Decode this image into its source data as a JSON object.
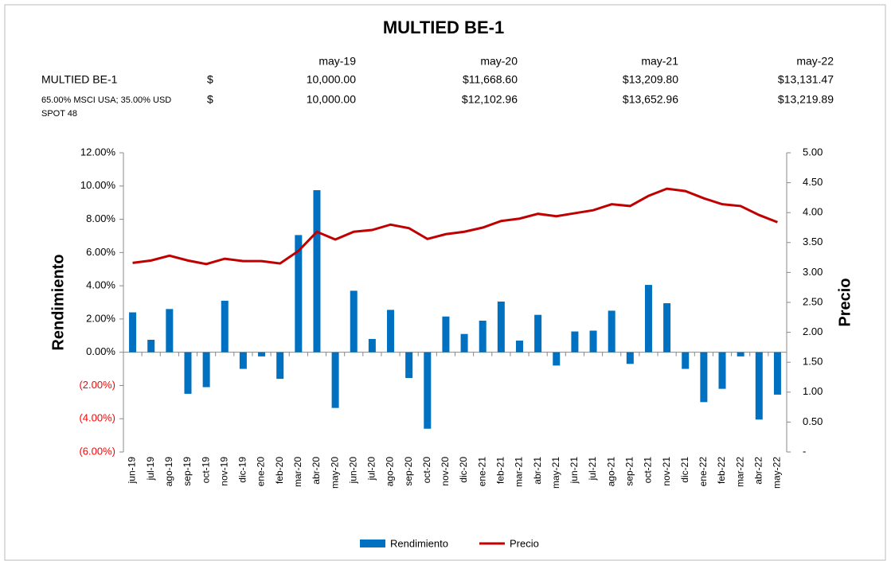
{
  "chart_data": {
    "type": "bar_line",
    "title": "MULTIED BE-1",
    "y_label": "Rendimiento",
    "y2_label": "Precio",
    "categories": [
      "jun-19",
      "jul-19",
      "ago-19",
      "sep-19",
      "oct-19",
      "nov-19",
      "dic-19",
      "ene-20",
      "feb-20",
      "mar-20",
      "abr-20",
      "may-20",
      "jun-20",
      "jul-20",
      "ago-20",
      "sep-20",
      "oct-20",
      "nov-20",
      "dic-20",
      "ene-21",
      "feb-21",
      "mar-21",
      "abr-21",
      "may-21",
      "jun-21",
      "jul-21",
      "ago-21",
      "sep-21",
      "oct-21",
      "nov-21",
      "dic-21",
      "ene-22",
      "feb-22",
      "mar-22",
      "abr-22",
      "may-22"
    ],
    "series": [
      {
        "name": "Rendimiento",
        "color": "#0070c0",
        "kind": "bar",
        "values": [
          2.4,
          0.75,
          2.6,
          -2.5,
          -2.1,
          3.1,
          -1.0,
          -0.25,
          -1.6,
          7.05,
          9.75,
          -3.35,
          3.7,
          0.8,
          2.55,
          -1.55,
          -4.6,
          2.15,
          1.1,
          1.9,
          3.05,
          0.7,
          2.25,
          -0.8,
          1.25,
          1.3,
          2.5,
          -0.7,
          4.05,
          2.95,
          -1.0,
          -3.0,
          -2.2,
          -0.25,
          -4.05,
          -2.55
        ]
      },
      {
        "name": "Precio",
        "color": "#c00000",
        "kind": "line",
        "axis": "y2",
        "values": [
          3.16,
          3.2,
          3.28,
          3.2,
          3.14,
          3.23,
          3.19,
          3.19,
          3.15,
          3.36,
          3.68,
          3.55,
          3.68,
          3.71,
          3.8,
          3.74,
          3.56,
          3.64,
          3.68,
          3.75,
          3.86,
          3.9,
          3.98,
          3.94,
          3.99,
          4.04,
          4.14,
          4.11,
          4.28,
          4.4,
          4.36,
          4.24,
          4.14,
          4.11,
          3.96,
          3.84
        ]
      }
    ],
    "ylim": [
      -6,
      12
    ],
    "yticks": [
      {
        "value": 12,
        "label": "12.00%"
      },
      {
        "value": 10,
        "label": "10.00%"
      },
      {
        "value": 8,
        "label": "8.00%"
      },
      {
        "value": 6,
        "label": "6.00%"
      },
      {
        "value": 4,
        "label": "4.00%"
      },
      {
        "value": 2,
        "label": "2.00%"
      },
      {
        "value": 0,
        "label": "0.00%"
      },
      {
        "value": -2,
        "label": "(2.00%)"
      },
      {
        "value": -4,
        "label": "(4.00%)"
      },
      {
        "value": -6,
        "label": "(6.00%)"
      }
    ],
    "negative_tick_color": "#ff0000",
    "y2lim": [
      0,
      5
    ],
    "y2ticks": [
      {
        "value": 5,
        "label": "5.00"
      },
      {
        "value": 4.5,
        "label": "4.50"
      },
      {
        "value": 4,
        "label": "4.00"
      },
      {
        "value": 3.5,
        "label": "3.50"
      },
      {
        "value": 3,
        "label": "3.00"
      },
      {
        "value": 2.5,
        "label": "2.50"
      },
      {
        "value": 2,
        "label": "2.00"
      },
      {
        "value": 1.5,
        "label": "1.50"
      },
      {
        "value": 1,
        "label": "1.00"
      },
      {
        "value": 0.5,
        "label": "0.50"
      },
      {
        "value": 0,
        "label": "-"
      }
    ],
    "legend": "bottom"
  },
  "table": {
    "columns": [
      "may-19",
      "may-20",
      "may-21",
      "may-22"
    ],
    "rows": [
      {
        "name": "MULTIED BE-1",
        "currency": "$",
        "values": [
          "10,000.00",
          "$11,668.60",
          "$13,209.80",
          "$13,131.47"
        ]
      },
      {
        "name": [
          "65.00% MSCI USA; 35.00% USD",
          "SPOT 48"
        ],
        "currency": "$",
        "values": [
          "10,000.00",
          "$12,102.96",
          "$13,652.96",
          "$13,219.89"
        ]
      }
    ]
  }
}
